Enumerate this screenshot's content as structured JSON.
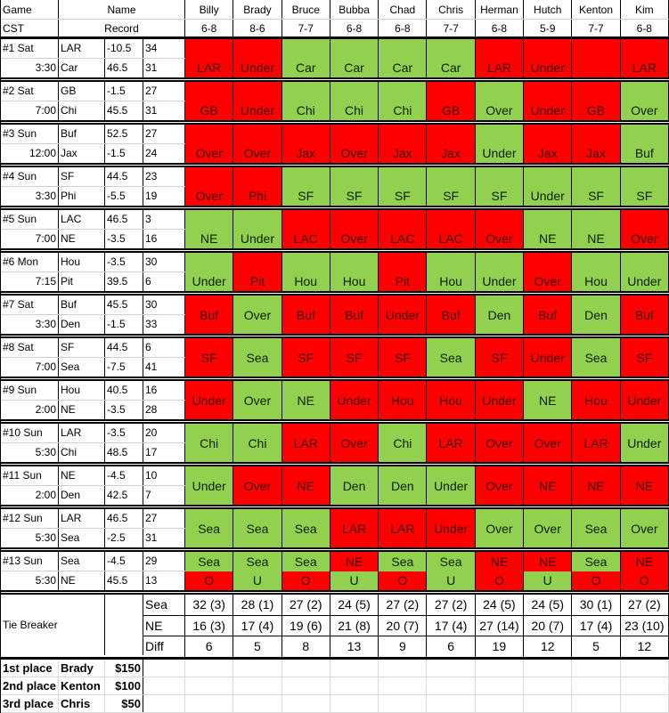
{
  "colors": {
    "win": "#92d050",
    "loss": "#ff0000"
  },
  "header": {
    "game": "Game",
    "cst": "CST",
    "name": "Name",
    "record": "Record"
  },
  "players": [
    {
      "name": "Billy",
      "record": "6-8"
    },
    {
      "name": "Brady",
      "record": "8-6"
    },
    {
      "name": "Bruce",
      "record": "7-7"
    },
    {
      "name": "Bubba",
      "record": "6-8"
    },
    {
      "name": "Chad",
      "record": "6-8"
    },
    {
      "name": "Chris",
      "record": "7-7"
    },
    {
      "name": "Herman",
      "record": "6-8"
    },
    {
      "name": "Hutch",
      "record": "5-9"
    },
    {
      "name": "Kenton",
      "record": "7-7"
    },
    {
      "name": "Kim",
      "record": "6-8"
    }
  ],
  "games": [
    {
      "label": "#1 Sat",
      "time": "3:30",
      "t1": "LAR",
      "l1": "-10.5",
      "s1": "34",
      "t2": "Car",
      "l2": "46.5",
      "s2": "31",
      "picks": [
        [
          "LAR",
          "red"
        ],
        [
          "Under",
          "red"
        ],
        [
          "Car",
          "green"
        ],
        [
          "Car",
          "green"
        ],
        [
          "Car",
          "green"
        ],
        [
          "Car",
          "green"
        ],
        [
          "LAR",
          "red"
        ],
        [
          "Under",
          "red"
        ],
        [
          "",
          "red"
        ],
        [
          "LAR",
          "red"
        ]
      ]
    },
    {
      "label": "#2 Sat",
      "time": "7:00",
      "t1": "GB",
      "l1": "-1.5",
      "s1": "27",
      "t2": "Chi",
      "l2": "45.5",
      "s2": "31",
      "picks": [
        [
          "GB",
          "red"
        ],
        [
          "Under",
          "red"
        ],
        [
          "Chi",
          "green"
        ],
        [
          "Chi",
          "green"
        ],
        [
          "Chi",
          "green"
        ],
        [
          "GB",
          "red"
        ],
        [
          "Over",
          "green"
        ],
        [
          "Under",
          "red"
        ],
        [
          "GB",
          "red"
        ],
        [
          "Over",
          "green"
        ]
      ]
    },
    {
      "label": "#3 Sun",
      "time": "12:00",
      "t1": "Buf",
      "l1": "52.5",
      "s1": "27",
      "t2": "Jax",
      "l2": "-1.5",
      "s2": "24",
      "picks": [
        [
          "Over",
          "red"
        ],
        [
          "Over",
          "red"
        ],
        [
          "Jax",
          "red"
        ],
        [
          "Over",
          "red"
        ],
        [
          "Jax",
          "red"
        ],
        [
          "Jax",
          "red"
        ],
        [
          "Under",
          "green"
        ],
        [
          "Jax",
          "red"
        ],
        [
          "Jax",
          "red"
        ],
        [
          "Buf",
          "green"
        ]
      ]
    },
    {
      "label": "#4 Sun",
      "time": "3:30",
      "t1": "SF",
      "l1": "44.5",
      "s1": "23",
      "t2": "Phi",
      "l2": "-5.5",
      "s2": "19",
      "picks": [
        [
          "Over",
          "red"
        ],
        [
          "Phi",
          "red"
        ],
        [
          "SF",
          "green"
        ],
        [
          "SF",
          "green"
        ],
        [
          "SF",
          "green"
        ],
        [
          "SF",
          "green"
        ],
        [
          "SF",
          "green"
        ],
        [
          "Under",
          "green"
        ],
        [
          "SF",
          "green"
        ],
        [
          "SF",
          "green"
        ]
      ]
    },
    {
      "label": "#5 Sun",
      "time": "7:00",
      "t1": "LAC",
      "l1": "46.5",
      "s1": "3",
      "t2": "NE",
      "l2": "-3.5",
      "s2": "16",
      "picks": [
        [
          "NE",
          "green"
        ],
        [
          "Under",
          "green"
        ],
        [
          "LAC",
          "red"
        ],
        [
          "Over",
          "red"
        ],
        [
          "LAC",
          "red"
        ],
        [
          "LAC",
          "red"
        ],
        [
          "Over",
          "red"
        ],
        [
          "NE",
          "green"
        ],
        [
          "NE",
          "green"
        ],
        [
          "Over",
          "red"
        ]
      ]
    },
    {
      "label": "#6 Mon",
      "time": "7:15",
      "t1": "Hou",
      "l1": "-3.5",
      "s1": "30",
      "t2": "Pit",
      "l2": "39.5",
      "s2": "6",
      "picks": [
        [
          "Under",
          "green"
        ],
        [
          "Pit",
          "red"
        ],
        [
          "Hou",
          "green"
        ],
        [
          "Hou",
          "green"
        ],
        [
          "Pit",
          "red"
        ],
        [
          "Hou",
          "green"
        ],
        [
          "Under",
          "green"
        ],
        [
          "Over",
          "red"
        ],
        [
          "Hou",
          "green"
        ],
        [
          "Under",
          "green"
        ]
      ]
    },
    {
      "label": "#7 Sat",
      "time": "3:30",
      "t1": "Buf",
      "l1": "45.5",
      "s1": "30",
      "t2": "Den",
      "l2": "-1.5",
      "s2": "33",
      "picks": [
        [
          "Buf",
          "red"
        ],
        [
          "Over",
          "green"
        ],
        [
          "Buf",
          "red"
        ],
        [
          "Buf",
          "red"
        ],
        [
          "Under",
          "red"
        ],
        [
          "Buf",
          "red"
        ],
        [
          "Den",
          "green"
        ],
        [
          "Buf",
          "red"
        ],
        [
          "Den",
          "green"
        ],
        [
          "Buf",
          "red"
        ]
      ]
    },
    {
      "label": "#8 Sat",
      "time": "7:00",
      "t1": "SF",
      "l1": "44.5",
      "s1": "6",
      "t2": "Sea",
      "l2": "-7.5",
      "s2": "41",
      "picks": [
        [
          "SF",
          "red"
        ],
        [
          "Sea",
          "green"
        ],
        [
          "SF",
          "red"
        ],
        [
          "SF",
          "red"
        ],
        [
          "SF",
          "red"
        ],
        [
          "Sea",
          "green"
        ],
        [
          "SF",
          "red"
        ],
        [
          "Under",
          "red"
        ],
        [
          "Sea",
          "green"
        ],
        [
          "SF",
          "red"
        ]
      ]
    },
    {
      "label": "#9 Sun",
      "time": "2:00",
      "t1": "Hou",
      "l1": "40.5",
      "s1": "16",
      "t2": "NE",
      "l2": "-3.5",
      "s2": "28",
      "picks": [
        [
          "Under",
          "red"
        ],
        [
          "Over",
          "green"
        ],
        [
          "NE",
          "green"
        ],
        [
          "Under",
          "red"
        ],
        [
          "Hou",
          "red"
        ],
        [
          "Hou",
          "red"
        ],
        [
          "Under",
          "red"
        ],
        [
          "NE",
          "green"
        ],
        [
          "Hou",
          "red"
        ],
        [
          "Under",
          "red"
        ]
      ]
    },
    {
      "label": "#10 Sun",
      "time": "5:30",
      "t1": "LAR",
      "l1": "-3.5",
      "s1": "20",
      "t2": "Chi",
      "l2": "48.5",
      "s2": "17",
      "picks": [
        [
          "Chi",
          "green"
        ],
        [
          "Chi",
          "green"
        ],
        [
          "LAR",
          "red"
        ],
        [
          "Over",
          "red"
        ],
        [
          "Chi",
          "green"
        ],
        [
          "LAR",
          "red"
        ],
        [
          "Over",
          "red"
        ],
        [
          "Over",
          "red"
        ],
        [
          "LAR",
          "red"
        ],
        [
          "Under",
          "green"
        ]
      ]
    },
    {
      "label": "#11 Sun",
      "time": "2:00",
      "t1": "NE",
      "l1": "-4.5",
      "s1": "10",
      "t2": "Den",
      "l2": "42.5",
      "s2": "7",
      "picks": [
        [
          "Under",
          "green"
        ],
        [
          "Over",
          "red"
        ],
        [
          "NE",
          "red"
        ],
        [
          "Den",
          "green"
        ],
        [
          "Den",
          "green"
        ],
        [
          "Under",
          "green"
        ],
        [
          "Over",
          "red"
        ],
        [
          "NE",
          "red"
        ],
        [
          "NE",
          "red"
        ],
        [
          "NE",
          "red"
        ]
      ]
    },
    {
      "label": "#12 Sun",
      "time": "5:30",
      "t1": "LAR",
      "l1": "46.5",
      "s1": "27",
      "t2": "Sea",
      "l2": "-2.5",
      "s2": "31",
      "picks": [
        [
          "Sea",
          "green"
        ],
        [
          "Sea",
          "green"
        ],
        [
          "Sea",
          "green"
        ],
        [
          "LAR",
          "red"
        ],
        [
          "LAR",
          "red"
        ],
        [
          "Under",
          "red"
        ],
        [
          "Over",
          "green"
        ],
        [
          "Over",
          "green"
        ],
        [
          "Sea",
          "green"
        ],
        [
          "Over",
          "green"
        ]
      ]
    },
    {
      "label": "#13 Sun",
      "time": "5:30",
      "t1": "Sea",
      "l1": "-4.5",
      "s1": "29",
      "t2": "NE",
      "l2": "45.5",
      "s2": "13",
      "picks": [
        [
          "Sea",
          "green",
          "O",
          "red"
        ],
        [
          "Sea",
          "green",
          "U",
          "green"
        ],
        [
          "Sea",
          "green",
          "O",
          "red"
        ],
        [
          "NE",
          "red",
          "U",
          "green"
        ],
        [
          "Sea",
          "green",
          "O",
          "red"
        ],
        [
          "Sea",
          "green",
          "U",
          "green"
        ],
        [
          "NE",
          "red",
          "O",
          "red"
        ],
        [
          "NE",
          "red",
          "U",
          "green"
        ],
        [
          "Sea",
          "green",
          "O",
          "red"
        ],
        [
          "NE",
          "red",
          "O",
          "red"
        ]
      ]
    }
  ],
  "tiebreaker": {
    "label": "Tie Breaker",
    "rows": [
      {
        "label": "Sea",
        "values": [
          "32 (3)",
          "28 (1)",
          "27 (2)",
          "24 (5)",
          "27 (2)",
          "27 (2)",
          "24 (5)",
          "24 (5)",
          "30 (1)",
          "27 (2)"
        ]
      },
      {
        "label": "NE",
        "values": [
          "16 (3)",
          "17 (4)",
          "19 (6)",
          "21 (8)",
          "20 (7)",
          "17 (4)",
          "27 (14)",
          "20 (7)",
          "17 (4)",
          "23 (10)"
        ]
      },
      {
        "label": "Diff",
        "values": [
          "6",
          "5",
          "8",
          "13",
          "9",
          "6",
          "19",
          "12",
          "5",
          "12"
        ]
      }
    ]
  },
  "places": [
    {
      "place": "1st place",
      "name": "Brady",
      "prize": "$150"
    },
    {
      "place": "2nd place",
      "name": "Kenton",
      "prize": "$100"
    },
    {
      "place": "3rd place",
      "name": "Chris",
      "prize": "$50"
    }
  ]
}
